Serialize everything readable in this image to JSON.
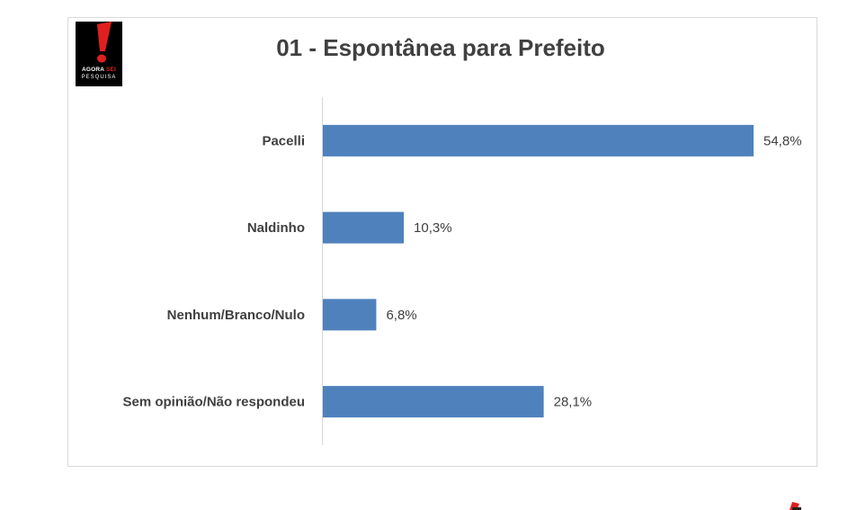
{
  "logo": {
    "line1_a": "AGORA",
    "line1_b": "SEI",
    "line2": "PESQUISA"
  },
  "chart_data": {
    "type": "bar",
    "orientation": "horizontal",
    "title": "01 - Espontânea para Prefeito",
    "categories": [
      "Pacelli",
      "Naldinho",
      "Nenhum/Branco/Nulo",
      "Sem opinião/Não respondeu"
    ],
    "values": [
      54.8,
      10.3,
      6.8,
      28.1
    ],
    "value_labels": [
      "54,8%",
      "10,3%",
      "6,8%",
      "28,1%"
    ],
    "xlim": [
      0,
      54.8
    ],
    "grid": false,
    "colors": {
      "bar": "#4f81bd",
      "text": "#404040",
      "axis": "#d9d9d9"
    }
  }
}
